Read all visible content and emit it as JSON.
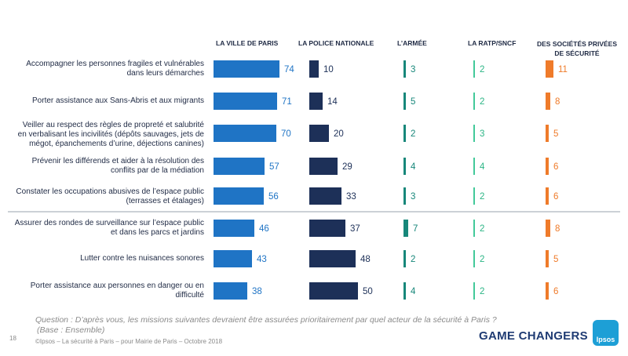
{
  "chart_data": {
    "type": "bar",
    "title": "",
    "series": [
      {
        "name": "La ville de Paris",
        "values": [
          74,
          71,
          70,
          57,
          56,
          46,
          43,
          38
        ]
      },
      {
        "name": "La police nationale",
        "values": [
          10,
          14,
          20,
          29,
          33,
          37,
          48,
          50
        ]
      },
      {
        "name": "L'armée",
        "values": [
          3,
          5,
          2,
          4,
          3,
          7,
          2,
          4
        ]
      },
      {
        "name": "La RATP/SNCF",
        "values": [
          2,
          2,
          3,
          4,
          2,
          2,
          2,
          2
        ]
      },
      {
        "name": "Des sociétés privées de sécurité",
        "values": [
          11,
          8,
          5,
          6,
          6,
          8,
          5,
          6
        ]
      }
    ],
    "categories": [
      [
        "Accompagner les personnes fragiles et vulnérables",
        "dans leurs démarches"
      ],
      [
        "Porter assistance aux Sans-Abris et aux migrants"
      ],
      [
        "Veiller au respect des règles de propreté et salubrité",
        "en verbalisant les incivilités (dépôts sauvages, jets de",
        "mégot, épanchements d’urine, déjections canines)"
      ],
      [
        "Prévenir les différends et aider à la résolution des",
        "conflits par de la médiation"
      ],
      [
        "Constater les occupations abusives de l’espace public",
        "(terrasses et étalages)"
      ],
      [
        "Assurer des rondes de surveillance sur l’espace public",
        "et dans les parcs et jardins"
      ],
      [
        "Lutter contre les nuisances sonores"
      ],
      [
        "Porter assistance aux personnes en danger ou en",
        "difficulté"
      ]
    ],
    "colors": [
      "#1f74c5",
      "#1d3058",
      "#17877a",
      "#43c99a",
      "#ef7b2a"
    ],
    "label_colors": [
      "#1f74c5",
      "#1d3058",
      "#17877a",
      "#2bb585",
      "#ef7b2a"
    ]
  },
  "headers": {
    "ville": "La ville de Paris",
    "police": "La police nationale",
    "armee": "L’armée",
    "ratp": "La RATP/SNCF",
    "privees_l1": "Des sociétés privées",
    "privees_l2": "de sécurité"
  },
  "footer": {
    "question_l1": "Question : D’après vous, les missions suivantes devraient être assurées prioritairement par quel acteur de la sécurité à Paris ?",
    "question_l2": "(Base : Ensemble)",
    "page_number": "18",
    "copyright": "©Ipsos – La sécurité à Paris – pour Mairie de Paris – Octobre 2018",
    "brand": "GAME CHANGERS",
    "logo_text": "Ipsos"
  }
}
